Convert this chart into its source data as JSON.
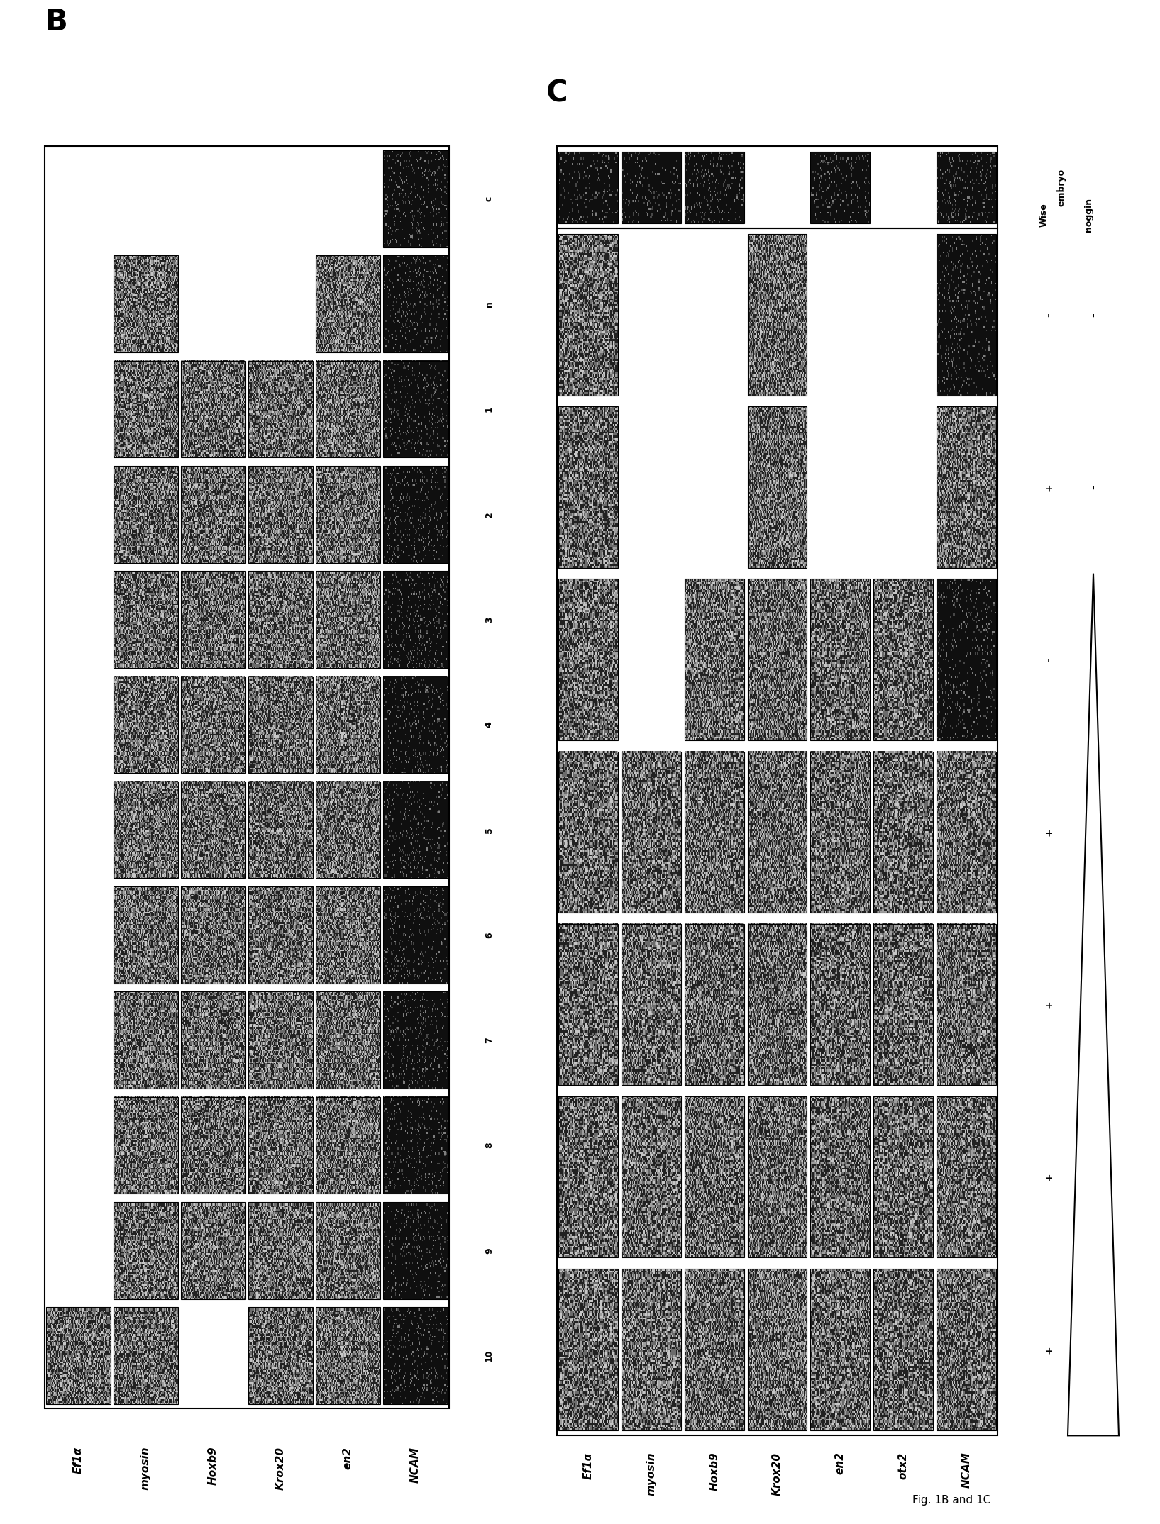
{
  "bg_color": "#ffffff",
  "fig_caption": "Fig. 1B and 1C",
  "panelB": {
    "lane_labels": [
      "c",
      "n",
      "1",
      "2",
      "3",
      "4",
      "5",
      "6",
      "7",
      "8",
      "9",
      "10"
    ],
    "gene_labels": [
      "NCAM",
      "en2",
      "Krox20",
      "Hoxb9",
      "myosin",
      "Ef1α"
    ],
    "n_lanes": 12,
    "n_genes": 6,
    "band_pattern": [
      [
        1,
        1,
        1,
        1,
        1,
        1,
        1,
        1,
        1,
        1,
        1,
        1
      ],
      [
        0,
        1,
        1,
        1,
        1,
        1,
        1,
        1,
        1,
        1,
        1,
        1
      ],
      [
        0,
        0,
        1,
        1,
        1,
        1,
        1,
        1,
        1,
        1,
        1,
        1
      ],
      [
        0,
        0,
        1,
        1,
        1,
        1,
        1,
        1,
        1,
        1,
        1,
        0
      ],
      [
        0,
        1,
        1,
        1,
        1,
        1,
        1,
        1,
        1,
        1,
        1,
        1
      ],
      [
        0,
        0,
        0,
        0,
        0,
        0,
        0,
        0,
        0,
        0,
        0,
        1
      ]
    ],
    "band_darkness": [
      [
        3,
        3,
        3,
        3,
        3,
        3,
        3,
        3,
        3,
        3,
        3,
        3
      ],
      [
        0,
        2,
        2,
        2,
        2,
        2,
        2,
        2,
        2,
        2,
        2,
        2
      ],
      [
        0,
        0,
        2,
        2,
        2,
        2,
        2,
        2,
        2,
        2,
        2,
        2
      ],
      [
        0,
        0,
        2,
        2,
        2,
        2,
        2,
        2,
        2,
        2,
        2,
        0
      ],
      [
        0,
        2,
        2,
        2,
        2,
        2,
        2,
        2,
        2,
        2,
        2,
        2
      ],
      [
        0,
        0,
        0,
        0,
        0,
        0,
        0,
        0,
        0,
        0,
        0,
        2
      ]
    ]
  },
  "panelC": {
    "lane_labels_noggin": [
      "-",
      "-",
      "+",
      "+",
      "+",
      "+",
      "+"
    ],
    "lane_labels_wise": [
      "-",
      "+",
      "-",
      "+",
      "+",
      "+",
      "+"
    ],
    "gene_labels": [
      "NCAM",
      "otx2",
      "en2",
      "Krox20",
      "Hoxb9",
      "myosin",
      "Ef1α"
    ],
    "n_lanes": 7,
    "n_genes": 7,
    "main_band_present": [
      [
        1,
        1,
        1,
        1,
        1,
        1,
        1
      ],
      [
        0,
        0,
        1,
        1,
        1,
        1,
        1
      ],
      [
        0,
        0,
        1,
        1,
        1,
        1,
        1
      ],
      [
        1,
        1,
        1,
        1,
        1,
        1,
        1
      ],
      [
        0,
        0,
        1,
        1,
        1,
        1,
        1
      ],
      [
        0,
        0,
        0,
        1,
        1,
        1,
        1
      ],
      [
        1,
        1,
        1,
        1,
        1,
        1,
        1
      ]
    ],
    "embryo_band_present": [
      1,
      0,
      1,
      0,
      1,
      1,
      1
    ],
    "main_band_darkness": [
      [
        3,
        2,
        3,
        2,
        2,
        2,
        2
      ],
      [
        0,
        0,
        2,
        2,
        2,
        2,
        2
      ],
      [
        0,
        0,
        2,
        2,
        2,
        2,
        2
      ],
      [
        2,
        2,
        2,
        2,
        2,
        2,
        2
      ],
      [
        0,
        0,
        2,
        2,
        2,
        2,
        2
      ],
      [
        0,
        0,
        0,
        2,
        2,
        2,
        2
      ],
      [
        2,
        2,
        2,
        2,
        2,
        2,
        2
      ]
    ]
  }
}
